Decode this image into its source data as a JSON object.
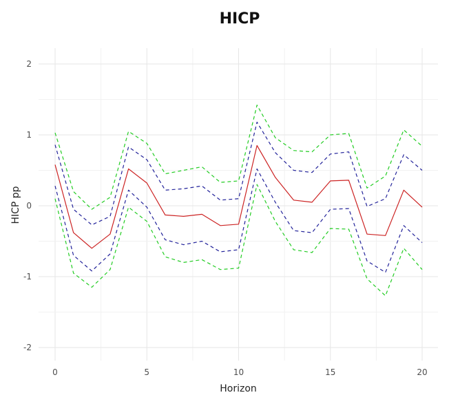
{
  "chart_data": {
    "type": "line",
    "title": "HICP",
    "xlabel": "Horizon",
    "ylabel": "HICP pp",
    "xlim": [
      0,
      20
    ],
    "ylim": [
      -2,
      2
    ],
    "xticks": [
      0,
      5,
      10,
      15,
      20
    ],
    "yticks": [
      -2,
      -1,
      0,
      1,
      2
    ],
    "grid": true,
    "legend": "none",
    "x": [
      0,
      1,
      2,
      3,
      4,
      5,
      6,
      7,
      8,
      9,
      10,
      11,
      12,
      13,
      14,
      15,
      16,
      17,
      18,
      19,
      20
    ],
    "series": [
      {
        "color": "#22cc22",
        "style": "dashed",
        "values": [
          1.03,
          0.2,
          -0.05,
          0.12,
          1.05,
          0.88,
          0.45,
          0.5,
          0.55,
          0.33,
          0.35,
          1.42,
          0.96,
          0.78,
          0.76,
          1.0,
          1.02,
          0.25,
          0.42,
          1.07,
          0.84
        ]
      },
      {
        "color": "#22229a",
        "style": "dashed",
        "values": [
          0.86,
          -0.05,
          -0.27,
          -0.15,
          0.83,
          0.65,
          0.22,
          0.24,
          0.28,
          0.08,
          0.1,
          1.18,
          0.75,
          0.5,
          0.47,
          0.73,
          0.76,
          -0.01,
          0.1,
          0.72,
          0.5
        ]
      },
      {
        "color": "#cc2222",
        "style": "solid",
        "values": [
          0.58,
          -0.38,
          -0.6,
          -0.4,
          0.52,
          0.32,
          -0.13,
          -0.15,
          -0.12,
          -0.28,
          -0.26,
          0.85,
          0.4,
          0.08,
          0.05,
          0.35,
          0.36,
          -0.4,
          -0.42,
          0.22,
          -0.02
        ]
      },
      {
        "color": "#22229a",
        "style": "dashed",
        "values": [
          0.28,
          -0.7,
          -0.92,
          -0.68,
          0.22,
          -0.02,
          -0.48,
          -0.55,
          -0.5,
          -0.65,
          -0.62,
          0.52,
          0.05,
          -0.35,
          -0.38,
          -0.05,
          -0.04,
          -0.78,
          -0.94,
          -0.28,
          -0.52
        ]
      },
      {
        "color": "#22cc22",
        "style": "dashed",
        "values": [
          0.1,
          -0.95,
          -1.15,
          -0.9,
          -0.02,
          -0.22,
          -0.72,
          -0.8,
          -0.76,
          -0.9,
          -0.88,
          0.3,
          -0.22,
          -0.62,
          -0.66,
          -0.32,
          -0.33,
          -1.03,
          -1.27,
          -0.6,
          -0.9
        ]
      }
    ]
  }
}
